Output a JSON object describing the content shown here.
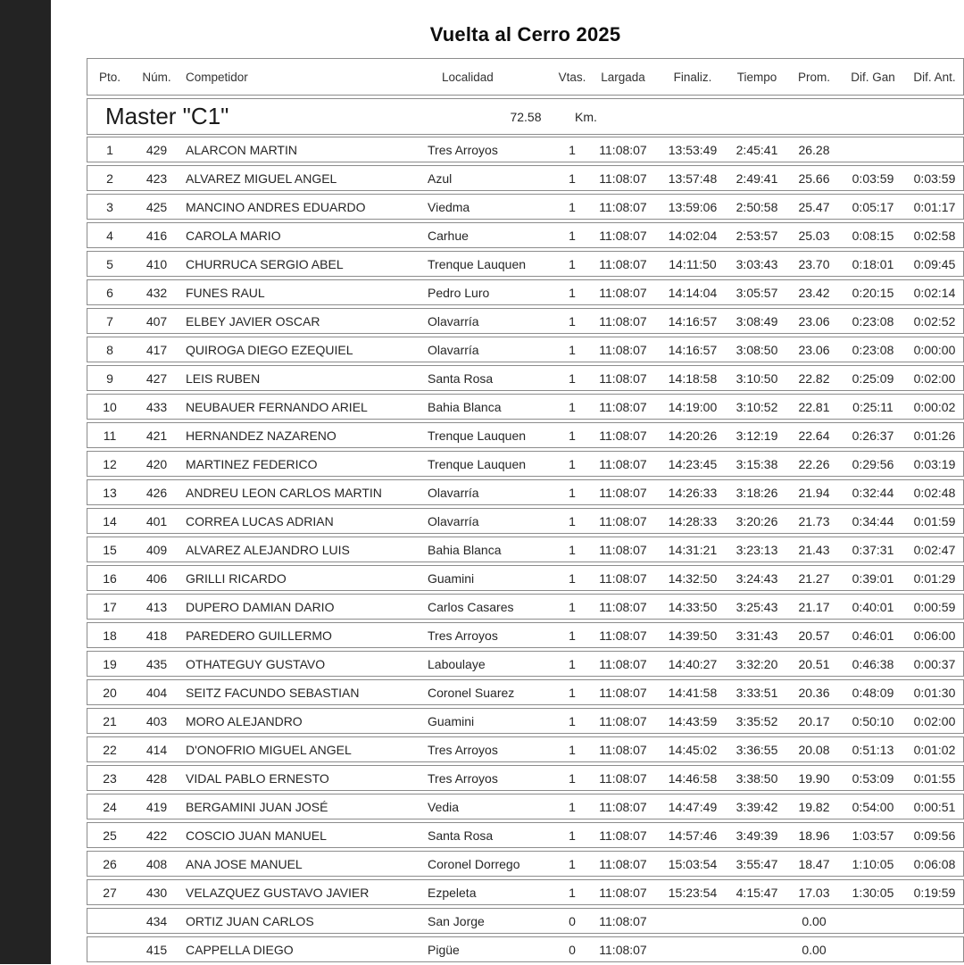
{
  "title": "Vuelta al Cerro 2025",
  "table": {
    "headers": [
      "Pto.",
      "Núm.",
      "Competidor",
      "Localidad",
      "Vtas.",
      "Largada",
      "Finaliz.",
      "Tiempo",
      "Prom.",
      "Dif. Gan",
      "Dif. Ant."
    ],
    "category": {
      "name": "Master \"C1\"",
      "distance": "72.58",
      "unit": "Km."
    },
    "rows": [
      [
        "1",
        "429",
        "ALARCON MARTIN",
        "Tres Arroyos",
        "1",
        "11:08:07",
        "13:53:49",
        "2:45:41",
        "26.28",
        "",
        ""
      ],
      [
        "2",
        "423",
        "ALVAREZ MIGUEL ANGEL",
        "Azul",
        "1",
        "11:08:07",
        "13:57:48",
        "2:49:41",
        "25.66",
        "0:03:59",
        "0:03:59"
      ],
      [
        "3",
        "425",
        "MANCINO ANDRES EDUARDO",
        "Viedma",
        "1",
        "11:08:07",
        "13:59:06",
        "2:50:58",
        "25.47",
        "0:05:17",
        "0:01:17"
      ],
      [
        "4",
        "416",
        "CAROLA MARIO",
        "Carhue",
        "1",
        "11:08:07",
        "14:02:04",
        "2:53:57",
        "25.03",
        "0:08:15",
        "0:02:58"
      ],
      [
        "5",
        "410",
        "CHURRUCA SERGIO ABEL",
        "Trenque Lauquen",
        "1",
        "11:08:07",
        "14:11:50",
        "3:03:43",
        "23.70",
        "0:18:01",
        "0:09:45"
      ],
      [
        "6",
        "432",
        "FUNES RAUL",
        "Pedro Luro",
        "1",
        "11:08:07",
        "14:14:04",
        "3:05:57",
        "23.42",
        "0:20:15",
        "0:02:14"
      ],
      [
        "7",
        "407",
        "ELBEY JAVIER OSCAR",
        "Olavarría",
        "1",
        "11:08:07",
        "14:16:57",
        "3:08:49",
        "23.06",
        "0:23:08",
        "0:02:52"
      ],
      [
        "8",
        "417",
        "QUIROGA DIEGO EZEQUIEL",
        "Olavarría",
        "1",
        "11:08:07",
        "14:16:57",
        "3:08:50",
        "23.06",
        "0:23:08",
        "0:00:00"
      ],
      [
        "9",
        "427",
        "LEIS RUBEN",
        "Santa Rosa",
        "1",
        "11:08:07",
        "14:18:58",
        "3:10:50",
        "22.82",
        "0:25:09",
        "0:02:00"
      ],
      [
        "10",
        "433",
        "NEUBAUER FERNANDO ARIEL",
        "Bahia Blanca",
        "1",
        "11:08:07",
        "14:19:00",
        "3:10:52",
        "22.81",
        "0:25:11",
        "0:00:02"
      ],
      [
        "11",
        "421",
        "HERNANDEZ NAZARENO",
        "Trenque Lauquen",
        "1",
        "11:08:07",
        "14:20:26",
        "3:12:19",
        "22.64",
        "0:26:37",
        "0:01:26"
      ],
      [
        "12",
        "420",
        "MARTINEZ FEDERICO",
        "Trenque Lauquen",
        "1",
        "11:08:07",
        "14:23:45",
        "3:15:38",
        "22.26",
        "0:29:56",
        "0:03:19"
      ],
      [
        "13",
        "426",
        "ANDREU LEON CARLOS MARTIN",
        "Olavarría",
        "1",
        "11:08:07",
        "14:26:33",
        "3:18:26",
        "21.94",
        "0:32:44",
        "0:02:48"
      ],
      [
        "14",
        "401",
        "CORREA LUCAS ADRIAN",
        "Olavarría",
        "1",
        "11:08:07",
        "14:28:33",
        "3:20:26",
        "21.73",
        "0:34:44",
        "0:01:59"
      ],
      [
        "15",
        "409",
        "ALVAREZ ALEJANDRO LUIS",
        "Bahia Blanca",
        "1",
        "11:08:07",
        "14:31:21",
        "3:23:13",
        "21.43",
        "0:37:31",
        "0:02:47"
      ],
      [
        "16",
        "406",
        "GRILLI RICARDO",
        "Guamini",
        "1",
        "11:08:07",
        "14:32:50",
        "3:24:43",
        "21.27",
        "0:39:01",
        "0:01:29"
      ],
      [
        "17",
        "413",
        "DUPERO DAMIAN DARIO",
        "Carlos Casares",
        "1",
        "11:08:07",
        "14:33:50",
        "3:25:43",
        "21.17",
        "0:40:01",
        "0:00:59"
      ],
      [
        "18",
        "418",
        "PAREDERO GUILLERMO",
        "Tres Arroyos",
        "1",
        "11:08:07",
        "14:39:50",
        "3:31:43",
        "20.57",
        "0:46:01",
        "0:06:00"
      ],
      [
        "19",
        "435",
        "OTHATEGUY GUSTAVO",
        "Laboulaye",
        "1",
        "11:08:07",
        "14:40:27",
        "3:32:20",
        "20.51",
        "0:46:38",
        "0:00:37"
      ],
      [
        "20",
        "404",
        "SEITZ FACUNDO SEBASTIAN",
        "Coronel Suarez",
        "1",
        "11:08:07",
        "14:41:58",
        "3:33:51",
        "20.36",
        "0:48:09",
        "0:01:30"
      ],
      [
        "21",
        "403",
        "MORO ALEJANDRO",
        "Guamini",
        "1",
        "11:08:07",
        "14:43:59",
        "3:35:52",
        "20.17",
        "0:50:10",
        "0:02:00"
      ],
      [
        "22",
        "414",
        "D'ONOFRIO MIGUEL ANGEL",
        "Tres Arroyos",
        "1",
        "11:08:07",
        "14:45:02",
        "3:36:55",
        "20.08",
        "0:51:13",
        "0:01:02"
      ],
      [
        "23",
        "428",
        "VIDAL PABLO ERNESTO",
        "Tres Arroyos",
        "1",
        "11:08:07",
        "14:46:58",
        "3:38:50",
        "19.90",
        "0:53:09",
        "0:01:55"
      ],
      [
        "24",
        "419",
        "BERGAMINI JUAN JOSÉ",
        "Vedia",
        "1",
        "11:08:07",
        "14:47:49",
        "3:39:42",
        "19.82",
        "0:54:00",
        "0:00:51"
      ],
      [
        "25",
        "422",
        "COSCIO JUAN MANUEL",
        "Santa Rosa",
        "1",
        "11:08:07",
        "14:57:46",
        "3:49:39",
        "18.96",
        "1:03:57",
        "0:09:56"
      ],
      [
        "26",
        "408",
        "ANA JOSE MANUEL",
        "Coronel Dorrego",
        "1",
        "11:08:07",
        "15:03:54",
        "3:55:47",
        "18.47",
        "1:10:05",
        "0:06:08"
      ],
      [
        "27",
        "430",
        "VELAZQUEZ GUSTAVO JAVIER",
        "Ezpeleta",
        "1",
        "11:08:07",
        "15:23:54",
        "4:15:47",
        "17.03",
        "1:30:05",
        "0:19:59"
      ],
      [
        "",
        "434",
        "ORTIZ JUAN CARLOS",
        "San Jorge",
        "0",
        "11:08:07",
        "",
        "",
        "0.00",
        "",
        ""
      ],
      [
        "",
        "415",
        "CAPPELLA DIEGO",
        "Pigüe",
        "0",
        "11:08:07",
        "",
        "",
        "0.00",
        "",
        ""
      ]
    ]
  },
  "colors": {
    "sidebar": "#232323",
    "border": "#8c8c8c",
    "text": "#1c1c1c"
  }
}
